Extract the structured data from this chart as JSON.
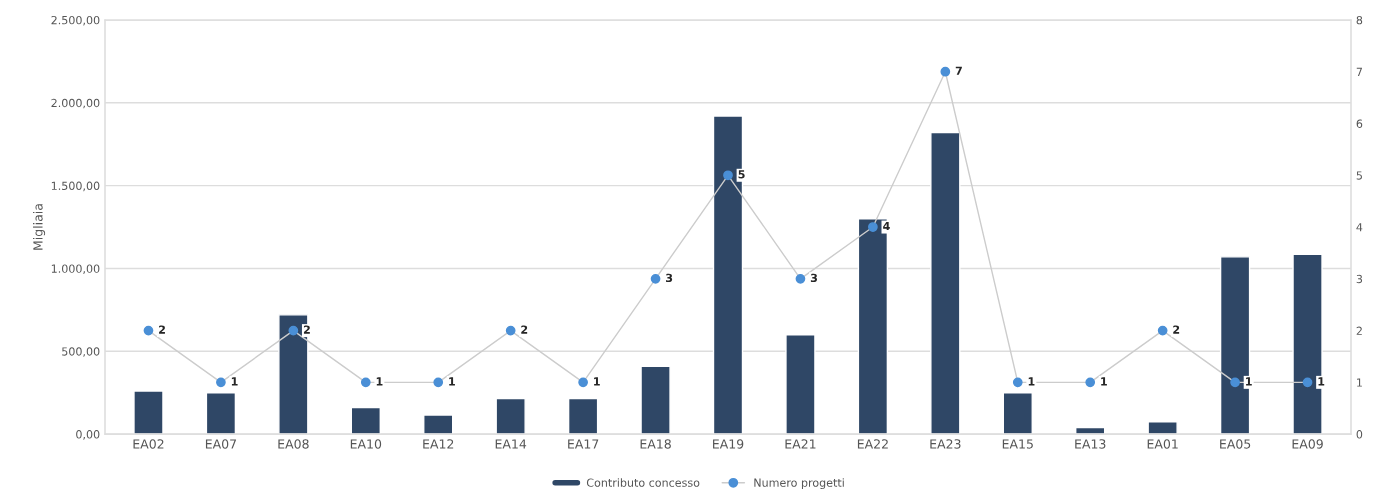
{
  "chart_data": {
    "type": "bar",
    "ylabel": "Migliaia",
    "categories": [
      "EA02",
      "EA07",
      "EA08",
      "EA10",
      "EA12",
      "EA14",
      "EA17",
      "EA18",
      "EA19",
      "EA21",
      "EA22",
      "EA23",
      "EA15",
      "EA13",
      "EA01",
      "EA05",
      "EA09"
    ],
    "series": [
      {
        "name": "Contributo concesso",
        "color": "#2f4766",
        "values": [
          260,
          250,
          720,
          160,
          115,
          215,
          215,
          410,
          1920,
          600,
          1300,
          1820,
          250,
          40,
          75,
          1070,
          1085
        ]
      },
      {
        "name": "Numero progetti",
        "type": "line",
        "axis": "y2",
        "color": "#4a8fd6",
        "marker": "circle",
        "data_labels": true,
        "values": [
          2,
          1,
          2,
          1,
          1,
          2,
          1,
          3,
          5,
          3,
          4,
          7,
          1,
          1,
          2,
          1,
          1
        ]
      }
    ],
    "ylim": [
      0,
      2500
    ],
    "yticks": [
      {
        "value": 0,
        "label": "0,00"
      },
      {
        "value": 500,
        "label": "500,00"
      },
      {
        "value": 1000,
        "label": "1.000,00"
      },
      {
        "value": 1500,
        "label": "1.500,00"
      },
      {
        "value": 2000,
        "label": "2.000,00"
      },
      {
        "value": 2500,
        "label": "2.500,00"
      }
    ],
    "y2lim": [
      0,
      8
    ],
    "y2ticks": [
      0,
      1,
      2,
      3,
      4,
      5,
      6,
      7,
      8
    ],
    "grid": "y",
    "legend": "bottom"
  }
}
